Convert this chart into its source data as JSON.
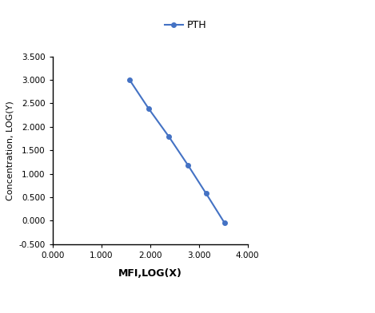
{
  "x": [
    1.58,
    1.97,
    2.38,
    2.78,
    3.15,
    3.53
  ],
  "y": [
    3.0,
    2.39,
    1.8,
    1.18,
    0.58,
    -0.05
  ],
  "line_color": "#4472C4",
  "marker": "o",
  "marker_size": 4,
  "line_width": 1.5,
  "legend_label": "PTH",
  "xlabel": "MFI,LOG(X)",
  "ylabel": "Concentration, LOG(Y)",
  "xlim": [
    0.0,
    4.0
  ],
  "ylim": [
    -0.5,
    3.5
  ],
  "xticks": [
    0.0,
    1.0,
    2.0,
    3.0,
    4.0
  ],
  "yticks": [
    -0.5,
    0.0,
    0.5,
    1.0,
    1.5,
    2.0,
    2.5,
    3.0,
    3.5
  ],
  "xlabel_fontsize": 9,
  "ylabel_fontsize": 8,
  "tick_fontsize": 7.5,
  "legend_fontsize": 9,
  "background_color": "#ffffff"
}
